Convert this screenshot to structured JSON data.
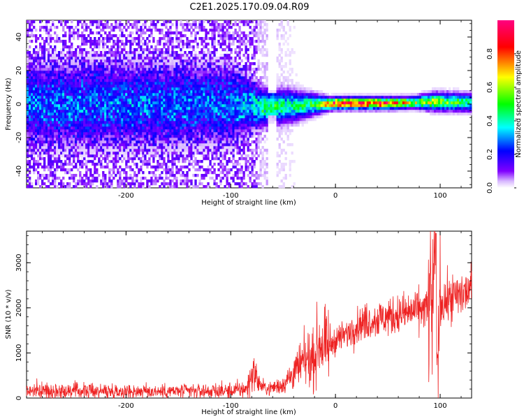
{
  "figure_title": "C2E1.2025.170.09.04.R09",
  "colors": {
    "snr_line": "#ee2222",
    "spectrogram_background": "#ffffff",
    "colormap": [
      "#ffffff",
      "#8000ff",
      "#0000ff",
      "#00ffff",
      "#00ff00",
      "#ffff00",
      "#ff0000",
      "#ff00ff"
    ]
  },
  "chart_data": [
    {
      "type": "heatmap",
      "title": "",
      "xlabel": "Height of straight line (km)",
      "ylabel": "Frequency (Hz)",
      "xlim": [
        -295,
        130
      ],
      "ylim": [
        -50,
        50
      ],
      "x_ticks": [
        "-200",
        "-100",
        "0",
        "100"
      ],
      "y_ticks": [
        "-40",
        "-20",
        "0",
        "20",
        "40"
      ],
      "colorbar": {
        "label": "Normalized spectral amplitude",
        "range": [
          0,
          1
        ],
        "ticks": [
          "0.0",
          "0.2",
          "0.4",
          "0.6",
          "0.8"
        ]
      },
      "band_profile": [
        {
          "x": -290,
          "center": 0,
          "halfwidth": 14,
          "amp": 0.22
        },
        {
          "x": -200,
          "center": 0,
          "halfwidth": 14,
          "amp": 0.22
        },
        {
          "x": -100,
          "center": 0,
          "halfwidth": 13,
          "amp": 0.22
        },
        {
          "x": -80,
          "center": -1,
          "halfwidth": 8,
          "amp": 0.32
        },
        {
          "x": -70,
          "center": -2,
          "halfwidth": 6,
          "amp": 0.45
        },
        {
          "x": -40,
          "center": -1,
          "halfwidth": 5,
          "amp": 0.45
        },
        {
          "x": -15,
          "center": 0,
          "halfwidth": 3,
          "amp": 0.55
        },
        {
          "x": -5,
          "center": 0,
          "halfwidth": 2,
          "amp": 0.8
        },
        {
          "x": 0,
          "center": 0.5,
          "halfwidth": 2,
          "amp": 0.93
        },
        {
          "x": 50,
          "center": 0.5,
          "halfwidth": 2,
          "amp": 0.85
        },
        {
          "x": 75,
          "center": 1,
          "halfwidth": 2,
          "amp": 0.6
        },
        {
          "x": 95,
          "center": 1.5,
          "halfwidth": 3,
          "amp": 0.6
        },
        {
          "x": 130,
          "center": 1,
          "halfwidth": 3,
          "amp": 0.45
        }
      ]
    },
    {
      "type": "line",
      "title": "",
      "xlabel": "Height of straight line (km)",
      "ylabel": "SNR (10 * v/v)",
      "xlim": [
        -295,
        130
      ],
      "ylim": [
        0,
        3700
      ],
      "x_ticks": [
        "-200",
        "-100",
        "0",
        "100"
      ],
      "y_ticks": [
        "0",
        "1000",
        "2000",
        "3000"
      ],
      "series": [
        {
          "x": [
            -295,
            -250,
            -200,
            -150,
            -100,
            -85,
            -78,
            -72,
            -65,
            -50,
            -40,
            -30,
            -20,
            -15,
            -10,
            -5,
            0,
            10,
            20,
            30,
            40,
            50,
            60,
            70,
            80,
            88,
            92,
            95,
            97,
            100,
            110,
            120,
            130
          ],
          "values": [
            160,
            160,
            150,
            150,
            160,
            200,
            600,
            280,
            200,
            300,
            550,
            800,
            900,
            1300,
            1100,
            1150,
            1300,
            1400,
            1600,
            1700,
            1750,
            1800,
            1850,
            1900,
            1950,
            2000,
            2100,
            2500,
            700,
            2100,
            2200,
            2300,
            2400
          ]
        }
      ]
    }
  ]
}
